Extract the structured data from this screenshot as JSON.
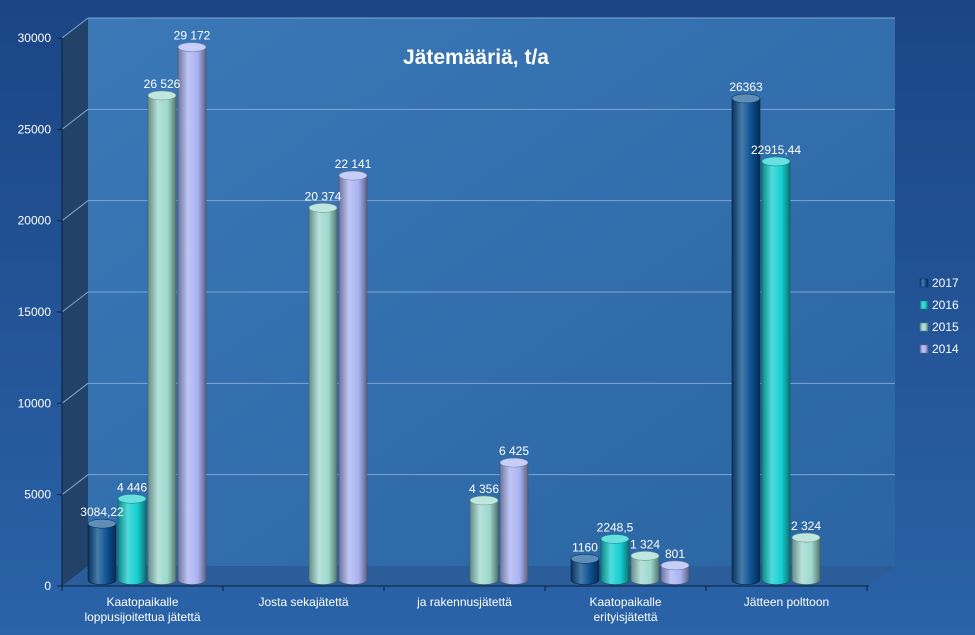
{
  "chart_data": {
    "type": "bar",
    "title": "Jätemääriä,  t/a",
    "categories": [
      [
        "Kaatopaikalle",
        "loppusijoitettua jätettä"
      ],
      [
        "Josta sekajätettä"
      ],
      [
        "ja rakennusjätettä"
      ],
      [
        "Kaatopaikalle",
        "erityisjätettä"
      ],
      [
        "Jätteen polttoon"
      ]
    ],
    "ylim": [
      0,
      30000
    ],
    "yticks": [
      "0",
      "5000",
      "10000",
      "15000",
      "20000",
      "25000",
      "30000"
    ],
    "grid": true,
    "legend_position": "right",
    "series": [
      {
        "name": "2017",
        "color": "#0a4f8f",
        "values": [
          3084.22,
          null,
          null,
          1160,
          26363
        ],
        "labels": [
          "3084,22",
          "",
          "",
          "1160",
          "26363"
        ]
      },
      {
        "name": "2016",
        "color": "#16cfd0",
        "values": [
          4446,
          null,
          null,
          2248.5,
          22915.44
        ],
        "labels": [
          "4 446",
          "",
          "",
          "2248,5",
          "22915,44"
        ]
      },
      {
        "name": "2015",
        "color": "#9ed8cf",
        "values": [
          26526,
          20374,
          4356,
          1324,
          2324
        ],
        "labels": [
          "26 526",
          "20 374",
          "4 356",
          "1 324",
          "2 324"
        ]
      },
      {
        "name": "2014",
        "color": "#a9b3f2",
        "values": [
          29172,
          22141,
          6425,
          801,
          null
        ],
        "labels": [
          "29 172",
          "22 141",
          "6 425",
          "801",
          ""
        ]
      }
    ]
  }
}
